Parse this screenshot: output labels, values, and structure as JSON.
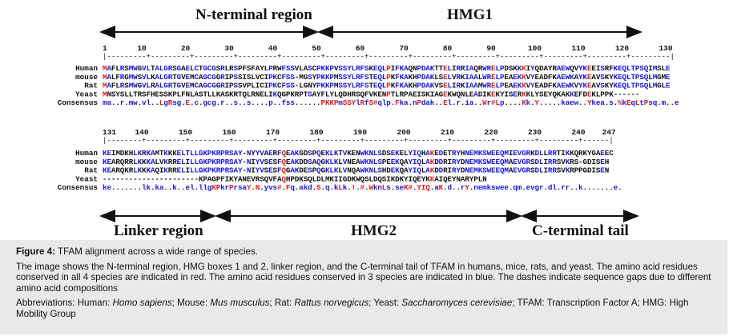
{
  "regions": {
    "n_terminal": "N-terminal region",
    "hmg1": "HMG1",
    "linker": "Linker region",
    "hmg2": "HMG2",
    "c_terminal": "C-terminal tail"
  },
  "block1": {
    "ruler_ticks": [
      "1",
      "10",
      "20",
      "30",
      "40",
      "50",
      "60",
      "70",
      "80",
      "90",
      "100",
      "110",
      "120",
      "130"
    ],
    "ruler_line": "|---------+---------+---------+---------+---------+---------+---------+---------+---------+---------+---------+---------+---------|",
    "species": [
      "Human",
      "mouse",
      "Rat",
      "Yeast",
      "Consensus"
    ],
    "sequences": [
      "MAFLRSMWGVLTALGRSGAELCTGCGSRLRSPFSFAYLPRWFSSVLASCPKKPVSSYLRFSKEQLPIFKAQNPDAKTTELIRRIAQRWRELPDSKKKIYQDAYRAEWQVYKEEISRFKEQLTPSQIMSLE",
      "MALFRGMWSVLKALGRTGVEMCAGCGGRIPSSISLVCIPKCFSS-MGSYPKKPMSSYLRFSTEQLPKFKAKHPDAKLSELVRKIAALWRELPEAEKKVYEADFKAEWKAYKEAVSKYKEQLTPSQLMGME",
      "MAFLRSMWGVLRALGRTGVEMCAGCGGRIPSSVPLICIPKCFSS-LGNYPKKPMSSYLRFSTEQLPKFKAKHPDAKVSELIRKIAAMWRELPEAEKKVYEADFKAEWKVYKEAVSKYKEQLTPSQLMGLE",
      "MNSYSLLTRSFHESSKPLFNLASTLLKASKRTQLRNELIKQGPKRPTSAYFLYLQDHRSQFVKENPTLRPAEISKIAGEKWQNLEADIKEKYISERKKLYSEYQKAKKEFDEKLPPK------",
      "ma..r.mw.vl..LgRsg.E.c.gcg.r..s..s....p..fss......PKKPmSSYlRfS#qlp.Fka.nPdak..El.r.ia..Wr#Lp....Kk.Y.....kaew..Ykea.s.%kEqLtPsq.m..e"
    ]
  },
  "block2": {
    "ruler_ticks": [
      "131",
      "140",
      "150",
      "160",
      "170",
      "180",
      "190",
      "200",
      "210",
      "220",
      "230",
      "240",
      "247"
    ],
    "ruler_line": "|--------+---------+---------+---------+---------+---------+---------+---------+---------+---------+---------+------|",
    "species": [
      "Human",
      "mouse",
      "Rat",
      "Yeast",
      "Consensus"
    ],
    "sequences": [
      "KEIMDKHLKRKAMTKKKELTLLGKPKRPRSAY-NYYVAERFQEAKGDSPQEKLKTVKENWKNLSDSEKELYIQHAKEDETRYHNEMKSWEEQMIEVGRKDLLRRTIKKQRKYGAEEC",
      "KEARQRRLKKKALVKRRELILLGKPKRPRSAY-NIYVSESFQEAKDDSAQGKLKLVNEAWKNLSPEEKQAYIQLAKDDRIRYDNEMKSWEEQMAEVGRSDLIRRSVKRS-GDISEH",
      "KEARQKRLKKKAQIKRRELILLGKPKRPRSAY-NIYVSESFQGAKDESPQGKLKLVNQAWKNLSHDEKQAYIQLAKDDRIRYDNEMKSWEEQMAEVGRSDLIRRSVKRPPGDISEN",
      "----------------------KPAGPFIKYANEVRSQVFAQHPDKSQLDLMKIIGDKWQSLDQSIKDKYIQEYKKAIQEYNARYPLN",
      "ke.......lk.ka..k..el.llgKPkrPrsaY.N.yvs#.Fq.akd.S.q.kLk.!.#.WknLs.seK#.YIQ.aK.d..rY.nemkswee.qm.evgr.dl.rr..k.......e."
    ]
  },
  "caption": {
    "figure_label": "Figure 4:",
    "title": "TFAM alignment across a wide range of species.",
    "description": "The image shows the N-terminal region, HMG boxes 1 and 2, linker region, and the C-terminal tail of TFAM in humans, mice, rats, and yeast. The amino acid residues conserved in all 4 species are indicated in red. The amino acid residues conserved in 3 species are indicated in blue. The dashes indicate sequence gaps due to different amino acid compositions",
    "abbrev_prefix": "Abbreviations: Human: ",
    "human_species": "Homo sapiens",
    "mouse_prefix": "; Mouse: ",
    "mouse_species": "Mus musculus",
    "rat_prefix": "; Rat: ",
    "rat_species": "Rattus norvegicus",
    "yeast_prefix": "; Yeast: ",
    "yeast_species": "Saccharomyces cerevisiae",
    "abbrev_suffix": "; TFAM: Transcription Factor A; HMG: High Mobility Group"
  },
  "colors": {
    "conserved_all": "#e8141b",
    "conserved_three": "#1515e0",
    "default": "#111111"
  }
}
